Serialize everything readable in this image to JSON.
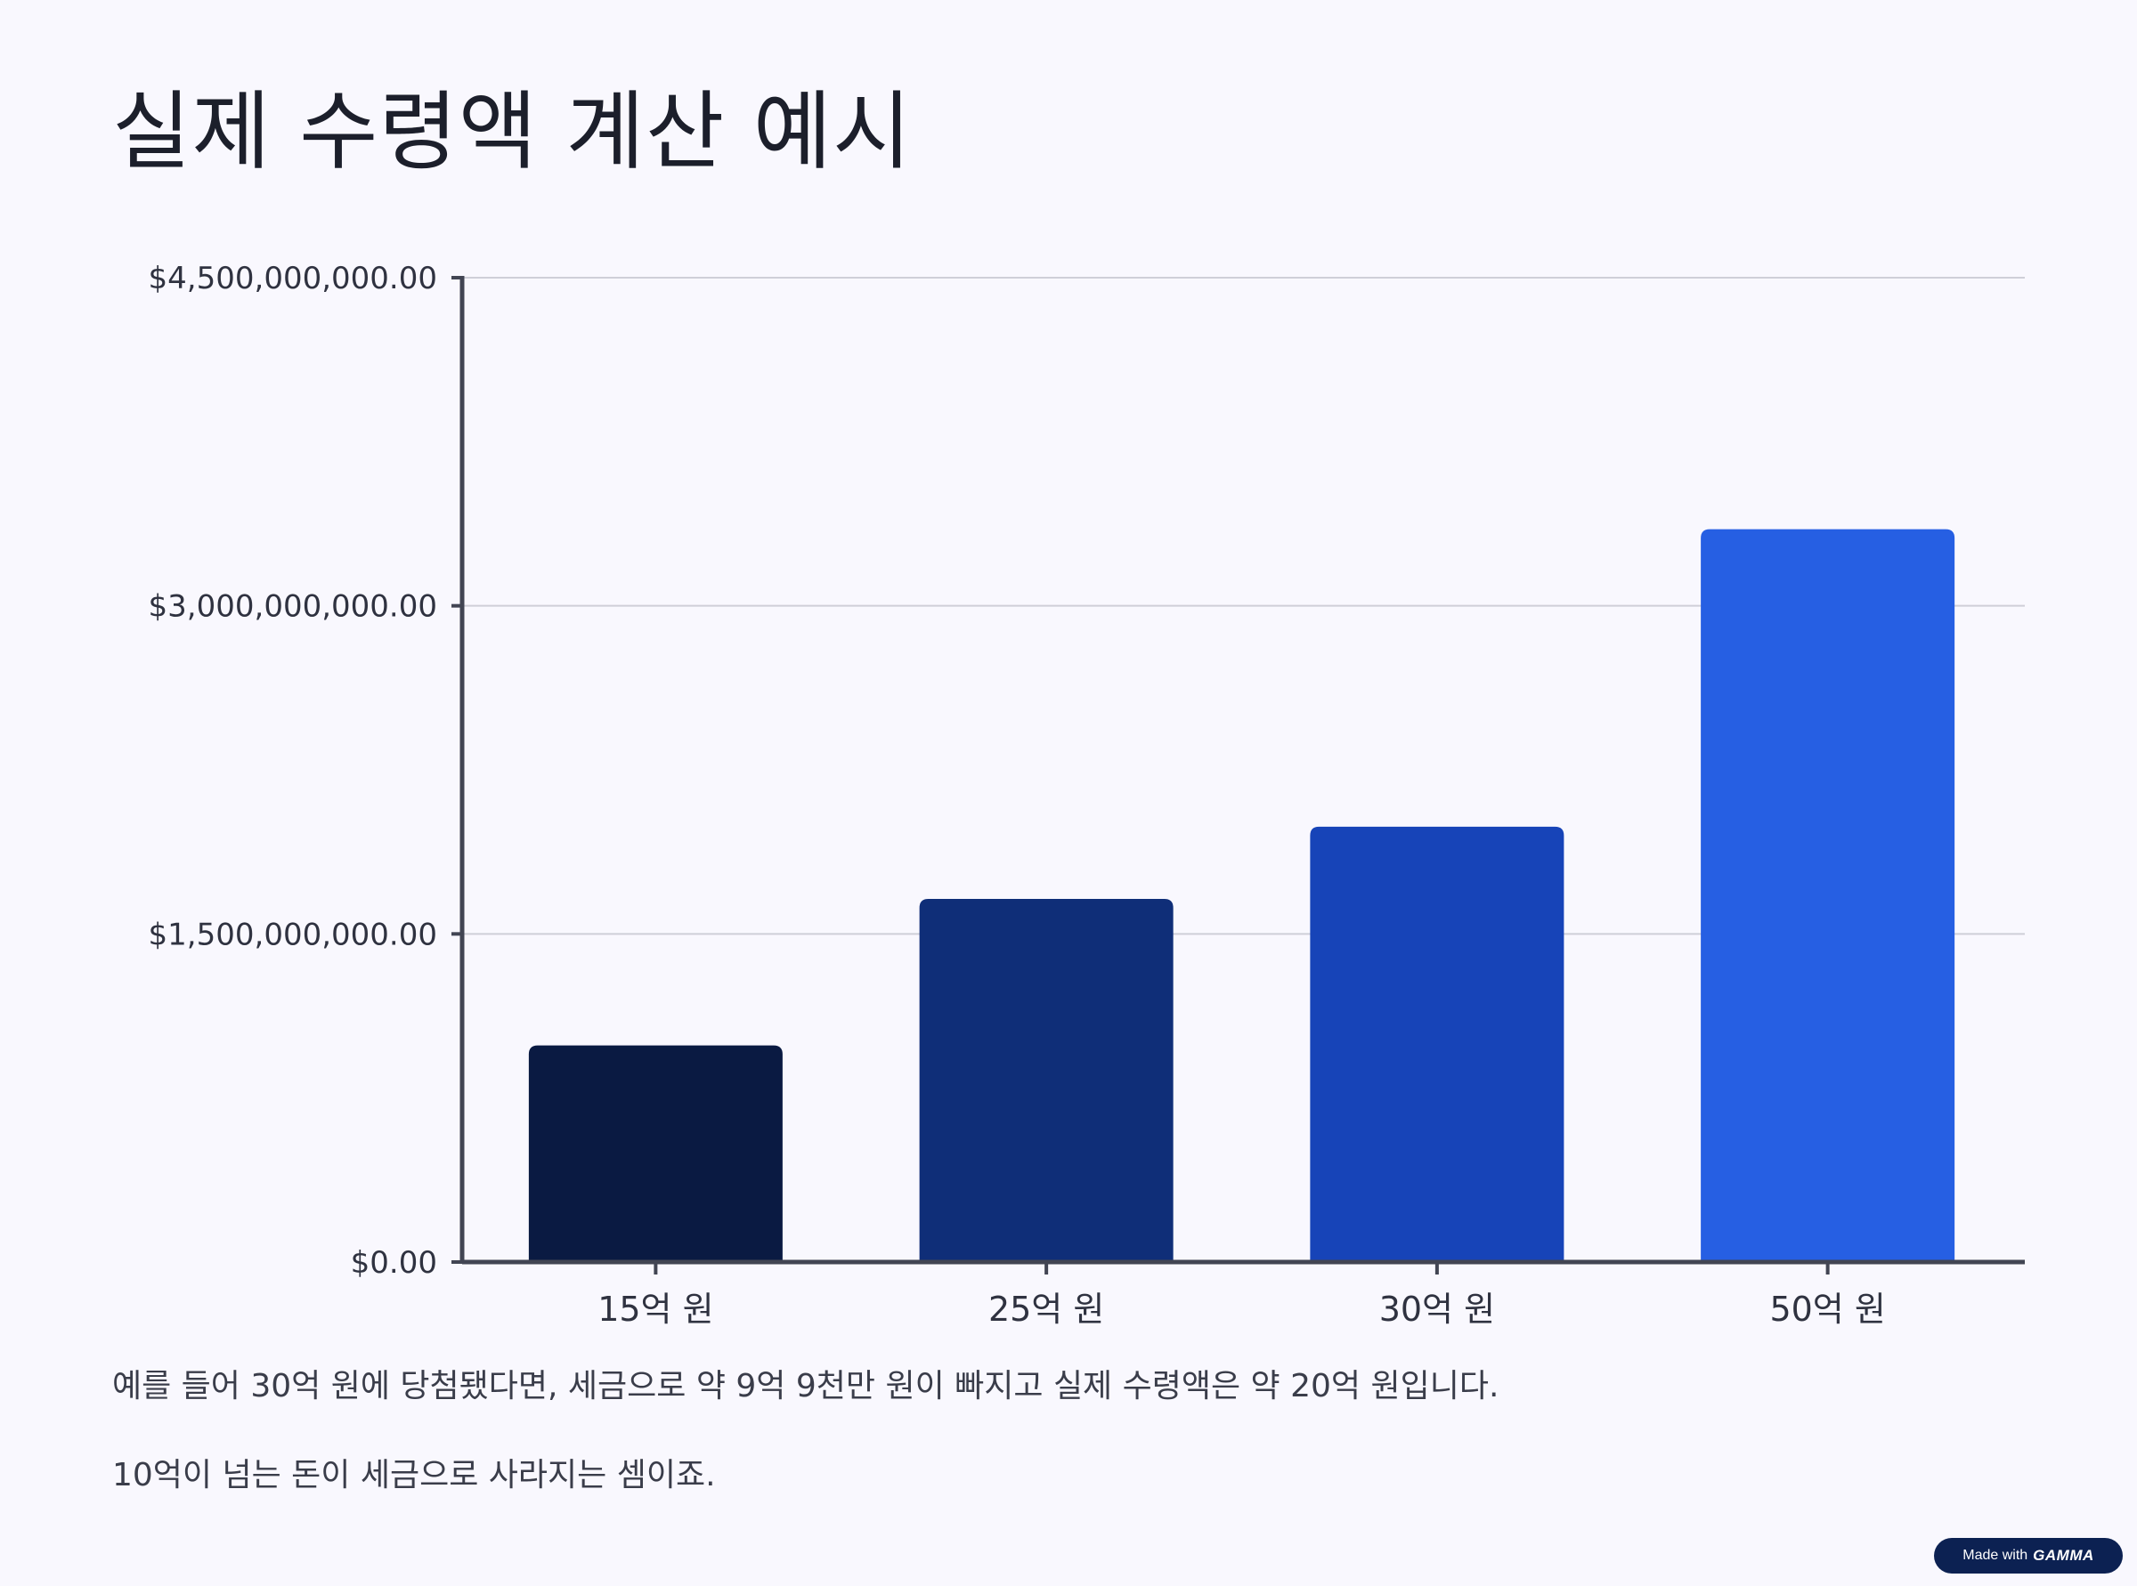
{
  "title": "실제 수령액 계산 예시",
  "chart_data": {
    "type": "bar",
    "categories": [
      "15억 원",
      "25억 원",
      "30억 원",
      "50억 원"
    ],
    "values": [
      990000000,
      1660000000,
      1990000000,
      3350000000
    ],
    "y_ticks": [
      {
        "value": 0,
        "label": "$0.00"
      },
      {
        "value": 1500000000,
        "label": "$1,500,000,000.00"
      },
      {
        "value": 3000000000,
        "label": "$3,000,000,000.00"
      },
      {
        "value": 4500000000,
        "label": "$4,500,000,000.00"
      }
    ],
    "ylim": [
      0,
      4500000000
    ],
    "grid": true,
    "legend": "none",
    "colors": [
      "#0a1a42",
      "#0f2e78",
      "#1744b8",
      "#265fe3"
    ],
    "axis_color": "#424553",
    "grid_color": "#cfcfd8"
  },
  "captions": [
    "예를 들어 30억 원에 당첨됐다면, 세금으로 약 9억 9천만 원이 빠지고 실제 수령액은 약 20억 원입니다.",
    "10억이 넘는 돈이 세금으로 사라지는 셈이죠."
  ],
  "badge": {
    "prefix": "Made with",
    "brand": "GAMMA"
  }
}
